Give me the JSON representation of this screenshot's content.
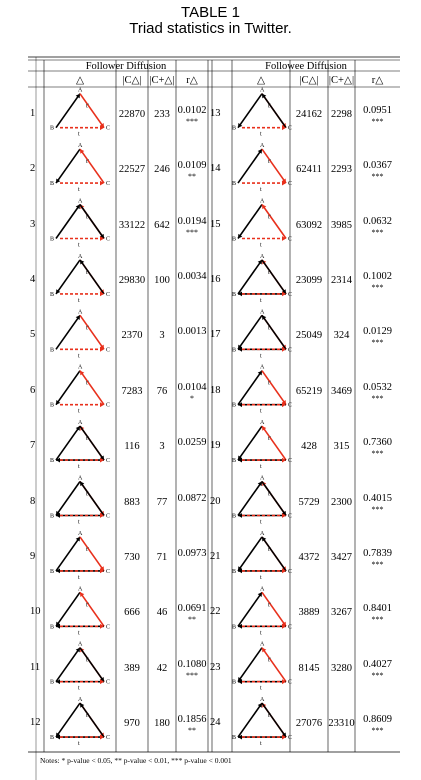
{
  "table": {
    "number": "TABLE 1",
    "title": "Triad statistics in Twitter."
  },
  "headers": {
    "left_group": "Follower Diffusion",
    "right_group": "Followee Diffusion",
    "triangle_col": "△",
    "count_col": "|C△|",
    "positive_col": "|C+△|",
    "ratio_col": "r△"
  },
  "node_labels": {
    "a": "A",
    "b": "B",
    "c": "C",
    "t": "t",
    "tprime": "t'"
  },
  "colors": {
    "black_edge": "#000000",
    "red_edge": "#e8301c"
  },
  "left_rows": [
    {
      "id": "1",
      "c": "22870",
      "cp": "233",
      "r": "0.0102",
      "sig": "***"
    },
    {
      "id": "2",
      "c": "22527",
      "cp": "246",
      "r": "0.0109",
      "sig": "**"
    },
    {
      "id": "3",
      "c": "33122",
      "cp": "642",
      "r": "0.0194",
      "sig": "***"
    },
    {
      "id": "4",
      "c": "29830",
      "cp": "100",
      "r": "0.0034",
      "sig": ""
    },
    {
      "id": "5",
      "c": "2370",
      "cp": "3",
      "r": "0.0013",
      "sig": ""
    },
    {
      "id": "6",
      "c": "7283",
      "cp": "76",
      "r": "0.0104",
      "sig": "*"
    },
    {
      "id": "7",
      "c": "116",
      "cp": "3",
      "r": "0.0259",
      "sig": ""
    },
    {
      "id": "8",
      "c": "883",
      "cp": "77",
      "r": "0.0872",
      "sig": ""
    },
    {
      "id": "9",
      "c": "730",
      "cp": "71",
      "r": "0.0973",
      "sig": ""
    },
    {
      "id": "10",
      "c": "666",
      "cp": "46",
      "r": "0.0691",
      "sig": "**"
    },
    {
      "id": "11",
      "c": "389",
      "cp": "42",
      "r": "0.1080",
      "sig": "***"
    },
    {
      "id": "12",
      "c": "970",
      "cp": "180",
      "r": "0.1856",
      "sig": "**"
    }
  ],
  "right_rows": [
    {
      "id": "13",
      "c": "24162",
      "cp": "2298",
      "r": "0.0951",
      "sig": "***"
    },
    {
      "id": "14",
      "c": "62411",
      "cp": "2293",
      "r": "0.0367",
      "sig": "***"
    },
    {
      "id": "15",
      "c": "63092",
      "cp": "3985",
      "r": "0.0632",
      "sig": "***"
    },
    {
      "id": "16",
      "c": "23099",
      "cp": "2314",
      "r": "0.1002",
      "sig": "***"
    },
    {
      "id": "17",
      "c": "25049",
      "cp": "324",
      "r": "0.0129",
      "sig": "***"
    },
    {
      "id": "18",
      "c": "65219",
      "cp": "3469",
      "r": "0.0532",
      "sig": "***"
    },
    {
      "id": "19",
      "c": "428",
      "cp": "315",
      "r": "0.7360",
      "sig": "***"
    },
    {
      "id": "20",
      "c": "5729",
      "cp": "2300",
      "r": "0.4015",
      "sig": "***"
    },
    {
      "id": "21",
      "c": "4372",
      "cp": "3427",
      "r": "0.7839",
      "sig": "***"
    },
    {
      "id": "22",
      "c": "3889",
      "cp": "3267",
      "r": "0.8401",
      "sig": "***"
    },
    {
      "id": "23",
      "c": "8145",
      "cp": "3280",
      "r": "0.4027",
      "sig": "***"
    },
    {
      "id": "24",
      "c": "27076",
      "cp": "23310",
      "r": "0.8609",
      "sig": "***"
    }
  ],
  "notes": "Notes: * p-value < 0.05, ** p-value < 0.01, *** p-value < 0.001"
}
